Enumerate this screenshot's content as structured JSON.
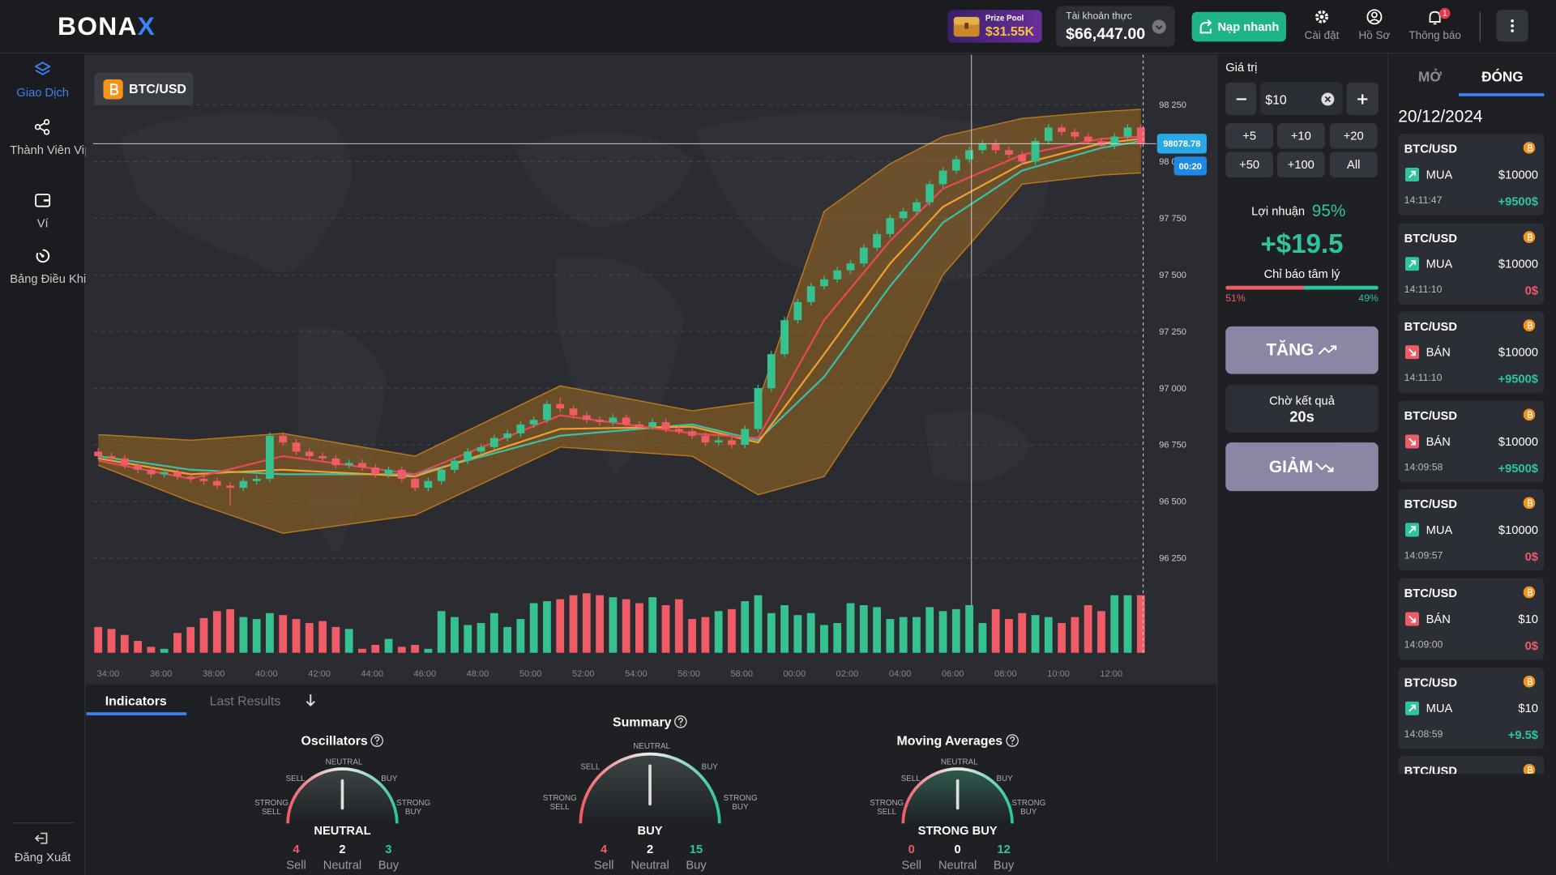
{
  "header": {
    "logo_main": "BONA",
    "logo_accent": "X",
    "prize_pool_label": "Prize Pool",
    "prize_pool_value": "$31.55K",
    "account_label": "Tài khoản thực",
    "account_balance": "$66,447.00",
    "deposit": "Nạp nhanh",
    "settings": "Cài đặt",
    "profile": "Hồ Sơ",
    "notifications": "Thông báo",
    "notification_count": 1
  },
  "sidebar": {
    "items": [
      "Giao Dịch",
      "Thành Viên Vip",
      "Ví",
      "Bảng Điều Khiển"
    ],
    "logout": "Đăng Xuất"
  },
  "chart": {
    "pair": "BTC/USD",
    "timer": "00:20",
    "ylim": [
      96130,
      98450
    ],
    "yticks": [
      {
        "value": 96250,
        "label": "96 250"
      },
      {
        "value": 96500,
        "label": "96 500"
      },
      {
        "value": 96750,
        "label": "96 750"
      },
      {
        "value": 97000,
        "label": "97 000"
      },
      {
        "value": 97250,
        "label": "97 250"
      },
      {
        "value": 97500,
        "label": "97 500"
      },
      {
        "value": 97750,
        "label": "97 750"
      },
      {
        "value": 98000,
        "label": "98 000"
      },
      {
        "value": 98250,
        "label": "98 250"
      }
    ],
    "grid": true,
    "up_color": "#35c28f",
    "down_color": "#f05b68",
    "times": [
      "34:00",
      "36:00",
      "38:00",
      "40:00",
      "42:00",
      "44:00",
      "46:00",
      "48:00",
      "50:00",
      "52:00",
      "54:00",
      "56:00",
      "58:00",
      "00:00",
      "02:00",
      "04:00",
      "06:00",
      "08:00",
      "10:00",
      "12:00"
    ],
    "candles": [
      [
        96720,
        96735,
        96685,
        96700
      ],
      [
        96700,
        96715,
        96675,
        96690
      ],
      [
        96690,
        96705,
        96645,
        96660
      ],
      [
        96660,
        96675,
        96625,
        96640
      ],
      [
        96640,
        96655,
        96605,
        96620
      ],
      [
        96620,
        96645,
        96605,
        96630
      ],
      [
        96630,
        96645,
        96595,
        96610
      ],
      [
        96610,
        96625,
        96585,
        96600
      ],
      [
        96600,
        96615,
        96575,
        96590
      ],
      [
        96590,
        96605,
        96555,
        96570
      ],
      [
        96570,
        96585,
        96480,
        96560
      ],
      [
        96560,
        96605,
        96545,
        96590
      ],
      [
        96590,
        96615,
        96575,
        96600
      ],
      [
        96600,
        96805,
        96585,
        96790
      ],
      [
        96790,
        96805,
        96745,
        96760
      ],
      [
        96760,
        96775,
        96705,
        96720
      ],
      [
        96720,
        96735,
        96685,
        96700
      ],
      [
        96700,
        96715,
        96675,
        96690
      ],
      [
        96690,
        96705,
        96645,
        96660
      ],
      [
        96660,
        96685,
        96645,
        96670
      ],
      [
        96670,
        96685,
        96635,
        96650
      ],
      [
        96650,
        96665,
        96605,
        96620
      ],
      [
        96620,
        96655,
        96605,
        96640
      ],
      [
        96640,
        96655,
        96585,
        96600
      ],
      [
        96600,
        96615,
        96545,
        96560
      ],
      [
        96560,
        96605,
        96545,
        96590
      ],
      [
        96590,
        96655,
        96575,
        96640
      ],
      [
        96640,
        96695,
        96625,
        96680
      ],
      [
        96680,
        96735,
        96665,
        96720
      ],
      [
        96720,
        96755,
        96705,
        96740
      ],
      [
        96740,
        96795,
        96725,
        96780
      ],
      [
        96780,
        96815,
        96765,
        96800
      ],
      [
        96800,
        96855,
        96785,
        96840
      ],
      [
        96840,
        96875,
        96825,
        96860
      ],
      [
        96860,
        96945,
        96845,
        96930
      ],
      [
        96930,
        96960,
        96895,
        96910
      ],
      [
        96910,
        96925,
        96865,
        96880
      ],
      [
        96880,
        96895,
        96845,
        96860
      ],
      [
        96860,
        96875,
        96835,
        96850
      ],
      [
        96850,
        96885,
        96835,
        96870
      ],
      [
        96870,
        96885,
        96825,
        96840
      ],
      [
        96840,
        96855,
        96815,
        96830
      ],
      [
        96830,
        96865,
        96815,
        96850
      ],
      [
        96850,
        96865,
        96805,
        96820
      ],
      [
        96820,
        96835,
        96795,
        96810
      ],
      [
        96810,
        96825,
        96775,
        96790
      ],
      [
        96790,
        96805,
        96745,
        96760
      ],
      [
        96760,
        96785,
        96745,
        96770
      ],
      [
        96770,
        96785,
        96735,
        96750
      ],
      [
        96750,
        96835,
        96735,
        96820
      ],
      [
        96820,
        97015,
        96805,
        97000
      ],
      [
        97000,
        97165,
        96985,
        97150
      ],
      [
        97150,
        97315,
        97135,
        97300
      ],
      [
        97300,
        97395,
        97285,
        97380
      ],
      [
        97380,
        97465,
        97365,
        97450
      ],
      [
        97450,
        97495,
        97435,
        97480
      ],
      [
        97480,
        97535,
        97465,
        97520
      ],
      [
        97520,
        97565,
        97505,
        97550
      ],
      [
        97550,
        97635,
        97535,
        97620
      ],
      [
        97620,
        97695,
        97605,
        97680
      ],
      [
        97680,
        97765,
        97665,
        97750
      ],
      [
        97750,
        97795,
        97735,
        97780
      ],
      [
        97780,
        97835,
        97765,
        97820
      ],
      [
        97820,
        97915,
        97805,
        97900
      ],
      [
        97900,
        97975,
        97885,
        97960
      ],
      [
        97960,
        98025,
        97945,
        98010
      ],
      [
        98010,
        98065,
        97995,
        98050
      ],
      [
        98050,
        98095,
        98035,
        98080
      ],
      [
        98080,
        98095,
        98035,
        98050
      ],
      [
        98050,
        98065,
        98015,
        98030
      ],
      [
        98030,
        98045,
        97985,
        98000
      ],
      [
        98000,
        98105,
        97985,
        98090
      ],
      [
        98090,
        98165,
        98075,
        98150
      ],
      [
        98150,
        98165,
        98115,
        98130
      ],
      [
        98130,
        98145,
        98095,
        98110
      ],
      [
        98110,
        98125,
        98075,
        98090
      ],
      [
        98090,
        98105,
        98055,
        98070
      ],
      [
        98070,
        98125,
        98055,
        98110
      ],
      [
        98110,
        98165,
        98095,
        98150
      ],
      [
        98150,
        98165,
        98060,
        98078.78
      ]
    ],
    "volume": [
      26,
      24,
      18,
      12,
      6,
      4,
      20,
      26,
      35,
      42,
      44,
      36,
      34,
      40,
      38,
      34,
      30,
      32,
      26,
      24,
      4,
      8,
      14,
      6,
      8,
      4,
      42,
      36,
      28,
      30,
      40,
      26,
      34,
      50,
      52,
      54,
      58,
      60,
      58,
      56,
      54,
      50,
      56,
      48,
      54,
      34,
      36,
      42,
      44,
      52,
      58,
      40,
      48,
      38,
      40,
      28,
      30,
      50,
      48,
      46,
      34,
      36,
      36,
      46,
      42,
      44,
      48,
      30,
      44,
      34,
      40,
      38,
      36,
      30,
      36,
      48,
      42,
      58,
      58,
      58
    ],
    "indicators": {
      "x": [
        0,
        7,
        14,
        24,
        35,
        45,
        50,
        55,
        60,
        64,
        70,
        76,
        79
      ],
      "band_upper": [
        96795,
        96770,
        96800,
        96700,
        97010,
        96900,
        96940,
        97780,
        97990,
        98110,
        98190,
        98220,
        98230
      ],
      "band_lower": [
        96660,
        96500,
        96360,
        96440,
        96740,
        96700,
        96530,
        96610,
        97050,
        97500,
        97900,
        97940,
        97950
      ],
      "ma_fast": [
        96680,
        96600,
        96700,
        96620,
        96880,
        96800,
        96780,
        97300,
        97650,
        97880,
        98030,
        98100,
        98110
      ],
      "ma_mid": [
        96690,
        96620,
        96640,
        96610,
        96820,
        96830,
        96760,
        97150,
        97550,
        97800,
        97990,
        98080,
        98100
      ],
      "ma_slow": [
        96700,
        96640,
        96620,
        96620,
        96790,
        96840,
        96770,
        97050,
        97450,
        97730,
        97960,
        98060,
        98090
      ],
      "band_color": "#b87820",
      "ma_fast_color": "#e8475c",
      "ma_mid_color": "#f0a030",
      "ma_slow_color": "#3cc0a8"
    }
  },
  "indicators": {
    "tabs": [
      "Indicators",
      "Last Results"
    ],
    "scale": [
      "STRONG SELL",
      "SELL",
      "NEUTRAL",
      "BUY",
      "STRONG BUY"
    ],
    "count_labels": [
      "Sell",
      "Neutral",
      "Buy"
    ],
    "gauges": [
      {
        "title": "Oscillators",
        "result": "NEUTRAL",
        "counts": [
          4,
          2,
          3
        ]
      },
      {
        "title": "Summary",
        "result": "BUY",
        "counts": [
          4,
          2,
          15
        ]
      },
      {
        "title": "Moving Averages",
        "result": "STRONG BUY",
        "counts": [
          0,
          0,
          12
        ]
      }
    ]
  },
  "trade": {
    "amount_label": "Giá trị",
    "amount": "$10",
    "quick": [
      "+5",
      "+10",
      "+20",
      "+50",
      "+100",
      "All"
    ],
    "profit_label": "Lợi nhuận",
    "profit_pct": "95%",
    "profit_value": "+$19.5",
    "sentiment_label": "Chỉ báo tâm lý",
    "sentiment_sell": {
      "value": 51,
      "label": "51%"
    },
    "sentiment_buy": {
      "value": 49,
      "label": "49%"
    },
    "up": "TĂNG",
    "waiting": "Chờ kết quả",
    "countdown": "20s",
    "down": "GIẢM"
  },
  "history": {
    "tabs": [
      "MỞ",
      "ĐÓNG"
    ],
    "date": "20/12/2024",
    "trades": [
      {
        "pair": "BTC/USD",
        "side": "MUA",
        "amount": "$10000",
        "time": "14:11:47",
        "result": "+9500$"
      },
      {
        "pair": "BTC/USD",
        "side": "MUA",
        "amount": "$10000",
        "time": "14:11:10",
        "result": "0$"
      },
      {
        "pair": "BTC/USD",
        "side": "BÁN",
        "amount": "$10000",
        "time": "14:11:10",
        "result": "+9500$"
      },
      {
        "pair": "BTC/USD",
        "side": "BÁN",
        "amount": "$10000",
        "time": "14:09:58",
        "result": "+9500$"
      },
      {
        "pair": "BTC/USD",
        "side": "MUA",
        "amount": "$10000",
        "time": "14:09:57",
        "result": "0$"
      },
      {
        "pair": "BTC/USD",
        "side": "BÁN",
        "amount": "$10",
        "time": "14:09:00",
        "result": "0$"
      },
      {
        "pair": "BTC/USD",
        "side": "MUA",
        "amount": "$10",
        "time": "14:08:59",
        "result": "+9.5$"
      },
      {
        "pair": "BTC/USD"
      }
    ]
  }
}
